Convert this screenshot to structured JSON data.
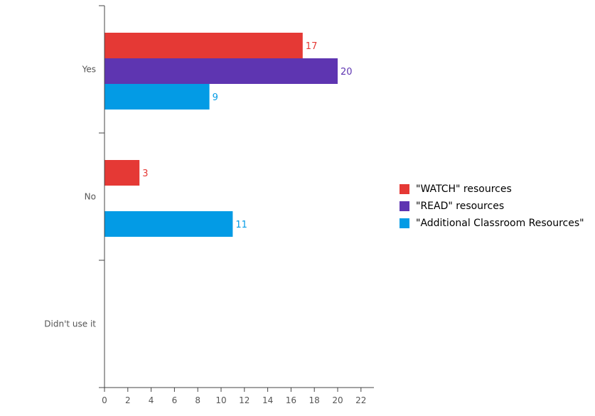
{
  "chart_data": {
    "type": "bar",
    "orientation": "horizontal",
    "categories": [
      "Yes",
      "No",
      "Didn't use it"
    ],
    "series": [
      {
        "name": "\"WATCH\" resources",
        "color": "#e53935",
        "values": [
          17,
          3,
          null
        ]
      },
      {
        "name": "\"READ\" resources",
        "color": "#5e35b1",
        "values": [
          20,
          null,
          null
        ]
      },
      {
        "name": "\"Additional Classroom Resources\"",
        "color": "#039be5",
        "values": [
          9,
          11,
          null
        ]
      }
    ],
    "xlim": [
      0,
      22
    ],
    "xticks": [
      0,
      2,
      4,
      6,
      8,
      10,
      12,
      14,
      16,
      18,
      20,
      22
    ],
    "title": "",
    "xlabel": "",
    "ylabel": "",
    "grid": false,
    "legend_position": "right"
  }
}
